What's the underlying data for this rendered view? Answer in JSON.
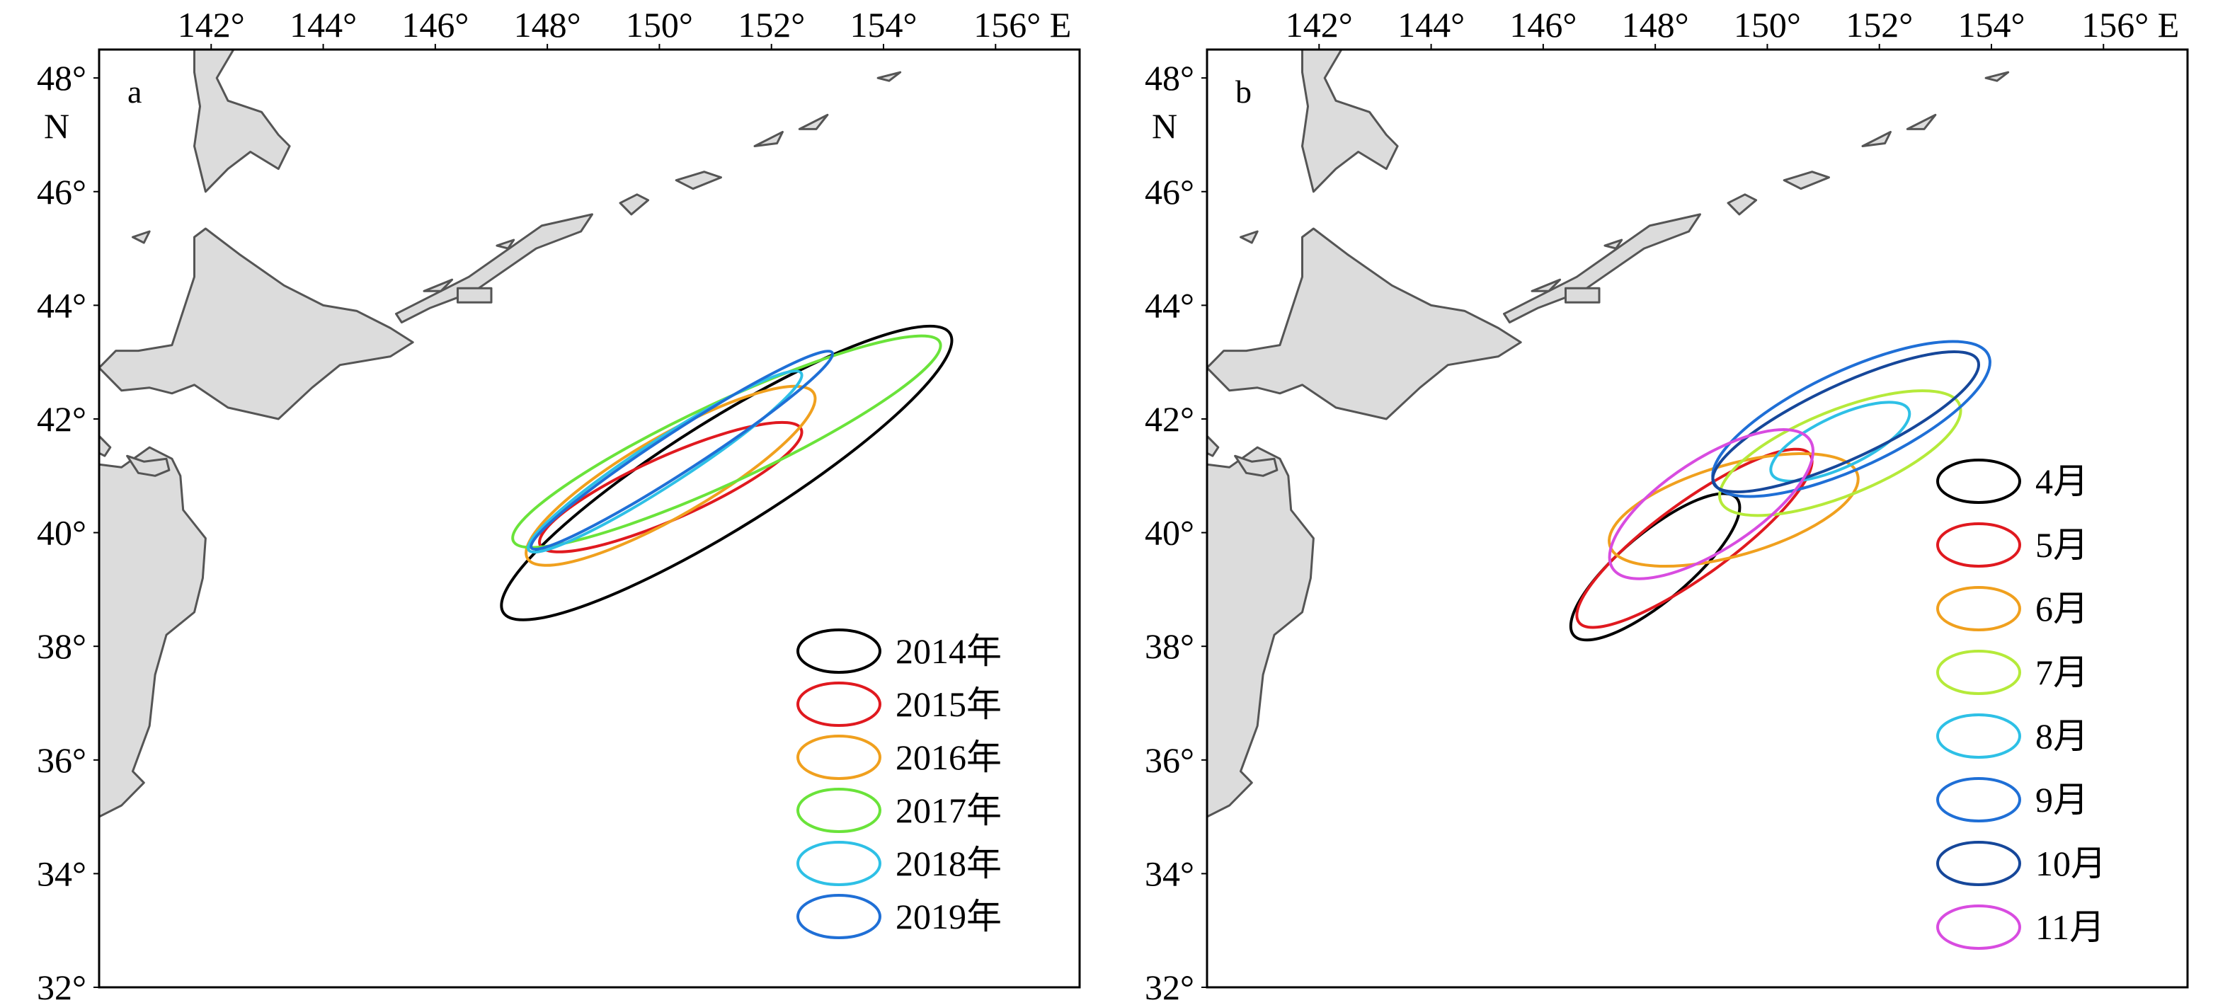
{
  "colors": {
    "land": "#dcdcdc",
    "coast": "#555555",
    "s2014": "#000000",
    "s2015": "#e0191f",
    "s2016": "#f0a01e",
    "s2017": "#6ae33a",
    "s2018": "#2ec0e6",
    "s2019": "#1f6fd6",
    "m4": "#000000",
    "m5": "#e0191f",
    "m6": "#f0a01e",
    "m7": "#b5ea3a",
    "m8": "#2ec0e6",
    "m9": "#1f6fd6",
    "m10": "#16479a",
    "m11": "#d84ce0"
  },
  "axes": {
    "lon_ticks": [
      "142°",
      "144°",
      "146°",
      "148°",
      "150°",
      "152°",
      "154°",
      "156° E"
    ],
    "lat_ticks": [
      "48°",
      "46°",
      "44°",
      "42°",
      "40°",
      "38°",
      "36°",
      "34°",
      "32°"
    ],
    "lat_unit": "N"
  },
  "panel_a": {
    "label": "a",
    "legend": [
      "2014年",
      "2015年",
      "2016年",
      "2017年",
      "2018年",
      "2019年"
    ]
  },
  "panel_b": {
    "label": "b",
    "legend": [
      "4月",
      "5月",
      "6月",
      "7月",
      "8月",
      "9月",
      "10月",
      "11月"
    ]
  },
  "chart_data": [
    {
      "type": "scatter",
      "description_units": "ellipses in degrees: center lon/lat, semi-major, semi-minor (deg), rotation (deg ccw)",
      "xlim": [
        140,
        157.5
      ],
      "ylim": [
        32,
        48.5
      ],
      "series": [
        {
          "name": "2014年",
          "ellipse": {
            "cx": 151.2,
            "cy": 41.05,
            "a": 4.7,
            "b": 0.95,
            "angle": 32
          }
        },
        {
          "name": "2015年",
          "ellipse": {
            "cx": 150.2,
            "cy": 40.8,
            "a": 2.55,
            "b": 0.55,
            "angle": 24
          }
        },
        {
          "name": "2016年",
          "ellipse": {
            "cx": 150.2,
            "cy": 41.0,
            "a": 2.95,
            "b": 0.7,
            "angle": 30
          }
        },
        {
          "name": "2017年",
          "ellipse": {
            "cx": 151.2,
            "cy": 41.6,
            "a": 4.2,
            "b": 0.7,
            "angle": 25
          }
        },
        {
          "name": "2018年",
          "ellipse": {
            "cx": 150.1,
            "cy": 41.25,
            "a": 2.9,
            "b": 0.4,
            "angle": 33
          }
        },
        {
          "name": "2019年",
          "ellipse": {
            "cx": 150.4,
            "cy": 41.45,
            "a": 3.2,
            "b": 0.35,
            "angle": 33
          }
        }
      ]
    },
    {
      "type": "scatter",
      "description_units": "ellipses in degrees: center lon/lat, semi-major, semi-minor (deg), rotation (deg ccw)",
      "xlim": [
        140,
        157.5
      ],
      "ylim": [
        32,
        48.5
      ],
      "series": [
        {
          "name": "4月",
          "ellipse": {
            "cx": 148.0,
            "cy": 39.4,
            "a": 1.9,
            "b": 0.6,
            "angle": 40
          }
        },
        {
          "name": "5月",
          "ellipse": {
            "cx": 148.7,
            "cy": 39.9,
            "a": 2.55,
            "b": 0.65,
            "angle": 36
          }
        },
        {
          "name": "6月",
          "ellipse": {
            "cx": 149.4,
            "cy": 40.4,
            "a": 2.3,
            "b": 0.8,
            "angle": 16
          }
        },
        {
          "name": "7月",
          "ellipse": {
            "cx": 151.3,
            "cy": 41.4,
            "a": 2.3,
            "b": 0.75,
            "angle": 22
          }
        },
        {
          "name": "8月",
          "ellipse": {
            "cx": 151.3,
            "cy": 41.6,
            "a": 1.35,
            "b": 0.45,
            "angle": 25
          }
        },
        {
          "name": "9月",
          "ellipse": {
            "cx": 151.5,
            "cy": 42.0,
            "a": 2.7,
            "b": 0.85,
            "angle": 25
          }
        },
        {
          "name": "10月",
          "ellipse": {
            "cx": 151.4,
            "cy": 41.95,
            "a": 2.6,
            "b": 0.65,
            "angle": 25
          }
        },
        {
          "name": "11月",
          "ellipse": {
            "cx": 149.0,
            "cy": 40.5,
            "a": 2.1,
            "b": 0.8,
            "angle": 33
          }
        }
      ]
    }
  ]
}
